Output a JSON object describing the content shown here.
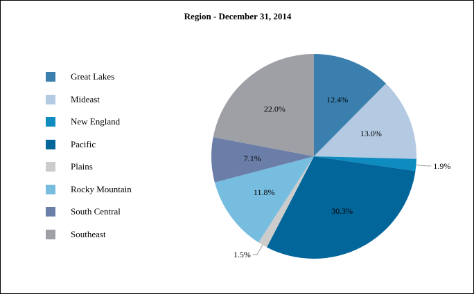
{
  "chart_data": {
    "type": "pie",
    "title": "Region - December 31, 2014",
    "legend_position": "left",
    "slices": [
      {
        "label": "Great Lakes",
        "value": 12.4,
        "display": "12.4%",
        "color": "#3b7fae",
        "label_placement": "inside"
      },
      {
        "label": "Mideast",
        "value": 13.0,
        "display": "13.0%",
        "color": "#b3cae2",
        "label_placement": "inside"
      },
      {
        "label": "New England",
        "value": 1.9,
        "display": "1.9%",
        "color": "#0e8cc0",
        "label_placement": "outside"
      },
      {
        "label": "Pacific",
        "value": 30.3,
        "display": "30.3%",
        "color": "#02669a",
        "label_placement": "inside"
      },
      {
        "label": "Plains",
        "value": 1.5,
        "display": "1.5%",
        "color": "#cccccc",
        "label_placement": "outside"
      },
      {
        "label": "Rocky Mountain",
        "value": 11.8,
        "display": "11.8%",
        "color": "#76bde0",
        "label_placement": "inside"
      },
      {
        "label": "South Central",
        "value": 7.1,
        "display": "7.1%",
        "color": "#6a7ea7",
        "label_placement": "inside"
      },
      {
        "label": "Southeast",
        "value": 22.0,
        "display": "22.0%",
        "color": "#9ea0a6",
        "label_placement": "inside"
      }
    ]
  }
}
